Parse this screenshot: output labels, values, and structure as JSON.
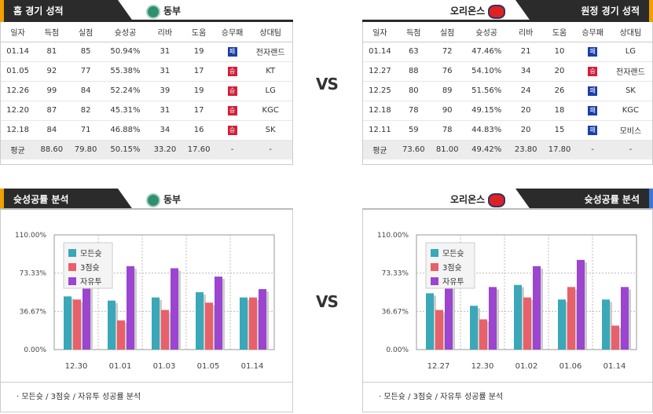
{
  "home": {
    "record_title": "홈 경기 성적",
    "analysis_title": "슛성공률 분석",
    "team": "동부",
    "columns": [
      "일자",
      "득점",
      "실점",
      "슛성공",
      "리바",
      "도움",
      "승무패",
      "상대팀"
    ],
    "rows": [
      {
        "date": "01.14",
        "pts": "81",
        "opp": "85",
        "fg": "50.94%",
        "reb": "31",
        "ast": "19",
        "res": "패",
        "res_type": "w",
        "team": "전자랜드"
      },
      {
        "date": "01.05",
        "pts": "92",
        "opp": "77",
        "fg": "55.38%",
        "reb": "31",
        "ast": "17",
        "res": "승",
        "res_type": "l",
        "team": "KT"
      },
      {
        "date": "12.26",
        "pts": "99",
        "opp": "84",
        "fg": "52.24%",
        "reb": "39",
        "ast": "19",
        "res": "승",
        "res_type": "l",
        "team": "LG"
      },
      {
        "date": "12.20",
        "pts": "87",
        "opp": "82",
        "fg": "45.31%",
        "reb": "31",
        "ast": "17",
        "res": "승",
        "res_type": "l",
        "team": "KGC"
      },
      {
        "date": "12.18",
        "pts": "84",
        "opp": "71",
        "fg": "46.88%",
        "reb": "34",
        "ast": "16",
        "res": "승",
        "res_type": "l",
        "team": "SK"
      }
    ],
    "avg": {
      "label": "평균",
      "pts": "88.60",
      "opp": "79.80",
      "fg": "50.15%",
      "reb": "33.20",
      "ast": "17.60",
      "res": "-",
      "team": "-"
    },
    "footer": "· 모든슛 / 3점슛 / 자유투 성공률 분석"
  },
  "away": {
    "record_title": "원정 경기 성적",
    "analysis_title": "슛성공률 분석",
    "team": "오리온스",
    "columns": [
      "일자",
      "득점",
      "실점",
      "슛성공",
      "리바",
      "도움",
      "승무패",
      "상대팀"
    ],
    "rows": [
      {
        "date": "01.14",
        "pts": "63",
        "opp": "72",
        "fg": "47.46%",
        "reb": "21",
        "ast": "10",
        "res": "패",
        "res_type": "w",
        "team": "LG"
      },
      {
        "date": "12.27",
        "pts": "88",
        "opp": "76",
        "fg": "54.10%",
        "reb": "34",
        "ast": "20",
        "res": "승",
        "res_type": "l",
        "team": "전자랜드"
      },
      {
        "date": "12.25",
        "pts": "80",
        "opp": "89",
        "fg": "51.56%",
        "reb": "24",
        "ast": "26",
        "res": "패",
        "res_type": "w",
        "team": "SK"
      },
      {
        "date": "12.18",
        "pts": "78",
        "opp": "90",
        "fg": "49.15%",
        "reb": "20",
        "ast": "18",
        "res": "패",
        "res_type": "w",
        "team": "KGC"
      },
      {
        "date": "12.11",
        "pts": "59",
        "opp": "78",
        "fg": "44.83%",
        "reb": "20",
        "ast": "15",
        "res": "패",
        "res_type": "w",
        "team": "모비스"
      }
    ],
    "avg": {
      "label": "평균",
      "pts": "73.60",
      "opp": "81.00",
      "fg": "49.42%",
      "reb": "23.80",
      "ast": "17.80",
      "res": "-",
      "team": "-"
    },
    "footer": "· 모든슛 / 3점슛 / 자유투 성공률 분석"
  },
  "vs_label": "VS",
  "colors": {
    "all_shots": "#3aa8b8",
    "three_pt": "#e8606a",
    "free_throw": "#9b45d0",
    "win_badge": "#1a3fa8",
    "loss_badge": "#d2203a",
    "accent": "#f0a000"
  },
  "chart_data": [
    {
      "type": "bar",
      "categories": [
        "12.30",
        "01.01",
        "01.03",
        "01.05",
        "01.14"
      ],
      "ylim": [
        0,
        110
      ],
      "yticks": [
        "0.00%",
        "36.67%",
        "73.33%",
        "110.00%"
      ],
      "legend_placement": "top-left",
      "grid": true,
      "series": [
        {
          "name": "모든슛",
          "values": [
            51,
            47,
            50,
            55,
            50
          ]
        },
        {
          "name": "3점슛",
          "values": [
            48,
            28,
            38,
            45,
            50
          ]
        },
        {
          "name": "자유투",
          "values": [
            67,
            80,
            78,
            70,
            58
          ]
        }
      ]
    },
    {
      "type": "bar",
      "categories": [
        "12.27",
        "12.30",
        "01.02",
        "01.06",
        "01.14"
      ],
      "ylim": [
        0,
        110
      ],
      "yticks": [
        "0.00%",
        "36.67%",
        "73.33%",
        "110.00%"
      ],
      "legend_placement": "top-left",
      "grid": true,
      "series": [
        {
          "name": "모든슛",
          "values": [
            54,
            42,
            62,
            48,
            48
          ]
        },
        {
          "name": "3점슛",
          "values": [
            38,
            29,
            50,
            60,
            23
          ]
        },
        {
          "name": "자유투",
          "values": [
            62,
            60,
            80,
            86,
            60
          ]
        }
      ]
    }
  ]
}
